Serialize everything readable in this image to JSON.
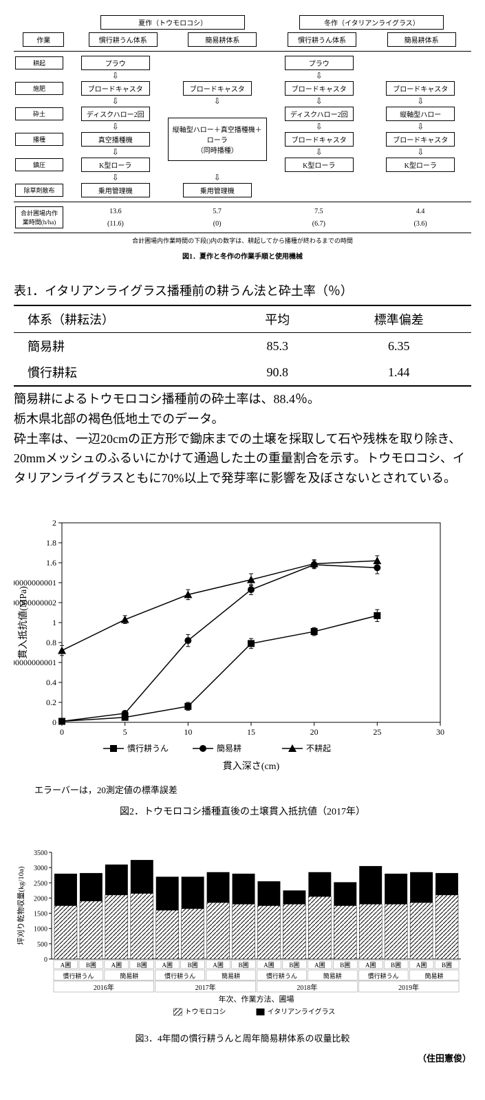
{
  "fig1": {
    "top": {
      "summer": "夏作（トウモロコシ）",
      "winter": "冬作（イタリアンライグラス）",
      "work": "作業",
      "cols": [
        "慣行耕うん体系",
        "簡易耕体系",
        "慣行耕うん体系",
        "簡易耕体系"
      ]
    },
    "rows": {
      "cultivation": "耕起",
      "fertilizer": "施肥",
      "crushing": "砕土",
      "seeding": "播種",
      "rolling": "鎮圧",
      "herbicide": "除草剤散布",
      "total": "合計圃場内作業時間(h/ha)"
    },
    "cells": {
      "plow": "プラウ",
      "broadcaster": "ブロードキャスタ",
      "disc2": "ディスクハロー2回",
      "vertaxis": "縦軸型ハロー",
      "vacuum": "真空播種機",
      "combined": "縦軸型ハロー＋真空播種機＋ローラ\n（同時播種）",
      "kroller": "K型ローラ",
      "rider": "乗用管理機"
    },
    "totals": {
      "c1a": "13.6",
      "c1b": "(11.6)",
      "c2a": "5.7",
      "c2b": "(0)",
      "c3a": "7.5",
      "c3b": "(6.7)",
      "c4a": "4.4",
      "c4b": "(3.6)"
    },
    "note": "合計圃場内作業時間の下段()内の数字は、耕起してから播種が終わるまでの時間",
    "caption": "図1．夏作と冬作の作業手順と使用機械"
  },
  "table1": {
    "title": "表1．イタリアンライグラス播種前の耕うん法と砕土率（％）",
    "cols": [
      "体系（耕耘法）",
      "平均",
      "標準偏差"
    ],
    "rows": [
      [
        "簡易耕",
        "85.3",
        "6.35"
      ],
      [
        "慣行耕耘",
        "90.8",
        "1.44"
      ]
    ],
    "notes": [
      "簡易耕によるトウモロコシ播種前の砕土率は、88.4％。",
      "栃木県北部の褐色低地土でのデータ。",
      "砕土率は、一辺20cmの正方形で鋤床までの土壌を採取して石や残株を取り除き、20mmメッシュのふるいにかけて通過した土の重量割合を示す。トウモロコシ、イタリアンライグラスともに70%以上で発芽率に影響を及ぼさないとされている。"
    ]
  },
  "fig2": {
    "ylabel": "貫入抵抗値(MPa)",
    "xlabel": "貫入深さ(cm)",
    "xlim": [
      0,
      30
    ],
    "xtick_step": 5,
    "ylim": [
      0,
      2
    ],
    "ytick_step": 0.2,
    "series": [
      {
        "name": "慣行耕うん",
        "marker": "square",
        "color": "#000000",
        "x": [
          0,
          5,
          10,
          15,
          20,
          25
        ],
        "y": [
          0.01,
          0.05,
          0.16,
          0.79,
          0.91,
          1.07
        ],
        "err": [
          0.01,
          0.01,
          0.04,
          0.05,
          0.04,
          0.06
        ]
      },
      {
        "name": "簡易耕",
        "marker": "circle",
        "color": "#000000",
        "x": [
          0,
          5,
          10,
          15,
          20,
          25
        ],
        "y": [
          0.01,
          0.09,
          0.82,
          1.33,
          1.58,
          1.55
        ],
        "err": [
          0.01,
          0.02,
          0.06,
          0.05,
          0.04,
          0.06
        ]
      },
      {
        "name": "不耕起",
        "marker": "triangle",
        "color": "#000000",
        "x": [
          0,
          5,
          10,
          15,
          20,
          25
        ],
        "y": [
          0.72,
          1.03,
          1.28,
          1.43,
          1.59,
          1.62
        ],
        "err": [
          0.05,
          0.04,
          0.05,
          0.06,
          0.04,
          0.05
        ]
      }
    ],
    "note": "エラーバーは，20測定値の標準誤差",
    "caption": "図2．トウモロコシ播種直後の土壌貫入抵抗値（2017年）"
  },
  "fig3": {
    "ylabel": "坪刈り乾物収量(kg/10a)",
    "xlabel": "年次、作業方法、圃場",
    "ylim": [
      0,
      3500
    ],
    "ytick_step": 500,
    "years": [
      "2016年",
      "2017年",
      "2018年",
      "2019年"
    ],
    "methods": [
      "慣行耕うん",
      "簡易耕"
    ],
    "fields": [
      "A圃",
      "B圃"
    ],
    "legend": [
      "トウモロコシ",
      "イタリアンライグラス"
    ],
    "hatch_color": "#000000",
    "solid_color": "#000000",
    "bars": [
      [
        [
          1750,
          2800
        ],
        [
          1900,
          2820
        ]
      ],
      [
        [
          2100,
          3100
        ],
        [
          2150,
          3250
        ]
      ],
      [
        [
          1600,
          2700
        ],
        [
          1650,
          2700
        ]
      ],
      [
        [
          1850,
          2850
        ],
        [
          1800,
          2800
        ]
      ],
      [
        [
          1750,
          2550
        ],
        [
          1800,
          2250
        ]
      ],
      [
        [
          2050,
          2850
        ],
        [
          1750,
          2520
        ]
      ],
      [
        [
          1800,
          3050
        ],
        [
          1800,
          2800
        ]
      ],
      [
        [
          1850,
          2850
        ],
        [
          2100,
          2820
        ]
      ]
    ],
    "caption": "図3．4年間の慣行耕うんと周年簡易耕体系の収量比較"
  },
  "credit": "（住田憲俊）"
}
